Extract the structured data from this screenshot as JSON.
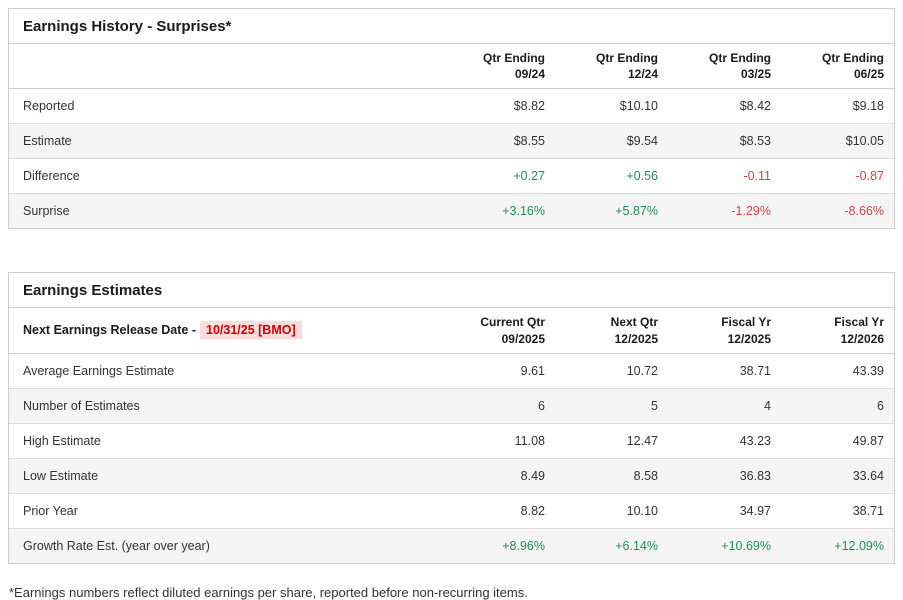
{
  "page": {
    "footnote": "*Earnings numbers reflect diluted earnings per share, reported before non-recurring items."
  },
  "colors": {
    "positive": "#1f8f4f",
    "negative": "#d14141",
    "release_date_text": "#cc0000",
    "release_date_bg": "#fbdcdc",
    "zebra": "#f5f5f5",
    "border": "#cccccc"
  },
  "earnings_history": {
    "title": "Earnings History - Surprises*",
    "columns": [
      [
        "Qtr Ending",
        "09/24"
      ],
      [
        "Qtr Ending",
        "12/24"
      ],
      [
        "Qtr Ending",
        "03/25"
      ],
      [
        "Qtr Ending",
        "06/25"
      ]
    ],
    "rows": [
      {
        "label": "Reported",
        "values": [
          "$8.82",
          "$10.10",
          "$8.42",
          "$9.18"
        ],
        "styles": [
          "",
          "",
          "",
          ""
        ]
      },
      {
        "label": "Estimate",
        "values": [
          "$8.55",
          "$9.54",
          "$8.53",
          "$10.05"
        ],
        "styles": [
          "",
          "",
          "",
          ""
        ]
      },
      {
        "label": "Difference",
        "values": [
          "+0.27",
          "+0.56",
          "-0.11",
          "-0.87"
        ],
        "styles": [
          "pos",
          "pos",
          "neg",
          "neg"
        ]
      },
      {
        "label": "Surprise",
        "values": [
          "+3.16%",
          "+5.87%",
          "-1.29%",
          "-8.66%"
        ],
        "styles": [
          "pos",
          "pos",
          "neg",
          "neg"
        ]
      }
    ]
  },
  "earnings_estimates": {
    "title": "Earnings Estimates",
    "release_label": "Next Earnings Release Date -",
    "release_date": "10/31/25 [BMO]",
    "columns": [
      [
        "Current Qtr",
        "09/2025"
      ],
      [
        "Next Qtr",
        "12/2025"
      ],
      [
        "Fiscal Yr",
        "12/2025"
      ],
      [
        "Fiscal Yr",
        "12/2026"
      ]
    ],
    "rows": [
      {
        "label": "Average Earnings Estimate",
        "values": [
          "9.61",
          "10.72",
          "38.71",
          "43.39"
        ],
        "styles": [
          "",
          "",
          "",
          ""
        ]
      },
      {
        "label": "Number of Estimates",
        "values": [
          "6",
          "5",
          "4",
          "6"
        ],
        "styles": [
          "",
          "",
          "",
          ""
        ]
      },
      {
        "label": "High Estimate",
        "values": [
          "11.08",
          "12.47",
          "43.23",
          "49.87"
        ],
        "styles": [
          "",
          "",
          "",
          ""
        ]
      },
      {
        "label": "Low Estimate",
        "values": [
          "8.49",
          "8.58",
          "36.83",
          "33.64"
        ],
        "styles": [
          "",
          "",
          "",
          ""
        ]
      },
      {
        "label": "Prior Year",
        "values": [
          "8.82",
          "10.10",
          "34.97",
          "38.71"
        ],
        "styles": [
          "",
          "",
          "",
          ""
        ]
      },
      {
        "label": "Growth Rate Est. (year over year)",
        "values": [
          "+8.96%",
          "+6.14%",
          "+10.69%",
          "+12.09%"
        ],
        "styles": [
          "pos",
          "pos",
          "pos",
          "pos"
        ]
      }
    ]
  }
}
